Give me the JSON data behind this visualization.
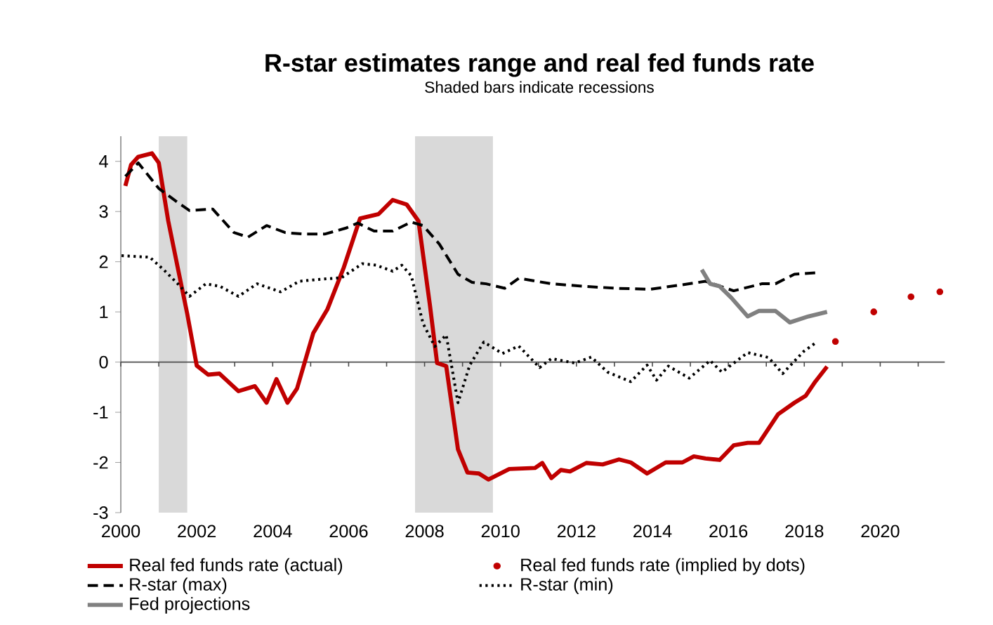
{
  "chart_data": {
    "type": "line",
    "title": "R-star estimates range and real fed funds rate",
    "subtitle": "Shaded bars indicate recessions",
    "xlim": [
      2000,
      2021.7
    ],
    "ylim": [
      -3,
      4.5
    ],
    "xticks": [
      2000,
      {
        "value": 2001,
        "label": null
      },
      2002,
      {
        "value": 2003,
        "label": null
      },
      2004,
      {
        "value": 2005,
        "label": null
      },
      2006,
      {
        "value": 2007,
        "label": null
      },
      2008,
      {
        "value": 2009,
        "label": null
      },
      2010,
      {
        "value": 2011,
        "label": null
      },
      2012,
      {
        "value": 2013,
        "label": null
      },
      2014,
      {
        "value": 2015,
        "label": null
      },
      2016,
      {
        "value": 2017,
        "label": null
      },
      2018,
      {
        "value": 2019,
        "label": null
      },
      2020,
      {
        "value": 2021,
        "label": null
      }
    ],
    "yticks": [
      -3,
      -2,
      -1,
      0,
      1,
      2,
      3,
      4
    ],
    "legend": "bottom",
    "bands": [
      {
        "axis": "x",
        "from": 2001.0,
        "to": 2001.75,
        "color": "#d9d9d9"
      },
      {
        "axis": "x",
        "from": 2007.75,
        "to": 2009.8,
        "color": "#d9d9d9"
      }
    ],
    "series": [
      {
        "name": "Real fed funds rate (actual)",
        "color": "#c00000",
        "line_style": "solid",
        "x": [
          2000.12,
          2000.27,
          2000.46,
          2000.82,
          2001.0,
          2001.25,
          2001.5,
          2001.75,
          2002.0,
          2002.3,
          2002.6,
          2003.1,
          2003.53,
          2003.84,
          2004.1,
          2004.39,
          2004.64,
          2005.07,
          2005.44,
          2005.87,
          2006.3,
          2006.79,
          2007.16,
          2007.53,
          2007.84,
          2008.14,
          2008.33,
          2008.57,
          2008.88,
          2009.13,
          2009.43,
          2009.68,
          2010.23,
          2010.91,
          2011.1,
          2011.34,
          2011.59,
          2011.83,
          2012.26,
          2012.69,
          2013.12,
          2013.43,
          2013.86,
          2014.35,
          2014.79,
          2015.09,
          2015.4,
          2015.77,
          2016.14,
          2016.51,
          2016.81,
          2017.31,
          2017.74,
          2018.04,
          2018.29,
          2018.6
        ],
        "values": [
          3.51,
          3.93,
          4.09,
          4.16,
          3.97,
          2.81,
          1.88,
          0.96,
          -0.07,
          -0.25,
          -0.23,
          -0.58,
          -0.48,
          -0.81,
          -0.34,
          -0.81,
          -0.53,
          0.58,
          1.05,
          1.88,
          2.86,
          2.95,
          3.23,
          3.14,
          2.81,
          1.14,
          -0.02,
          -0.08,
          -1.74,
          -2.2,
          -2.22,
          -2.34,
          -2.13,
          -2.11,
          -2.01,
          -2.31,
          -2.15,
          -2.18,
          -2.01,
          -2.04,
          -1.94,
          -2.0,
          -2.22,
          -2.0,
          -2.0,
          -1.88,
          -1.92,
          -1.95,
          -1.66,
          -1.61,
          -1.61,
          -1.04,
          -0.81,
          -0.67,
          -0.39,
          -0.09
        ]
      },
      {
        "name": "Real fed funds rate (implied by dots)",
        "type": "scatter",
        "marker": "circle",
        "color": "#c00000",
        "x": [
          2018.82,
          2019.83,
          2020.81,
          2021.57
        ],
        "values": [
          0.41,
          1.0,
          1.3,
          1.4
        ]
      },
      {
        "name": "R-star (max)",
        "color": "#000000",
        "line_style": "dashed",
        "x": [
          2000.12,
          2000.46,
          2001.0,
          2001.5,
          2001.81,
          2002.42,
          2002.98,
          2003.35,
          2003.84,
          2004.33,
          2004.82,
          2005.37,
          2005.93,
          2006.24,
          2006.67,
          2007.16,
          2007.65,
          2007.96,
          2008.39,
          2008.88,
          2009.25,
          2009.62,
          2010.11,
          2010.48,
          2011.34,
          2012.2,
          2013.06,
          2013.92,
          2014.79,
          2015.4,
          2016.14,
          2016.88,
          2017.24,
          2017.74,
          2018.29
        ],
        "values": [
          3.7,
          3.97,
          3.46,
          3.18,
          3.02,
          3.05,
          2.58,
          2.49,
          2.72,
          2.58,
          2.55,
          2.55,
          2.67,
          2.77,
          2.61,
          2.61,
          2.79,
          2.72,
          2.35,
          1.75,
          1.59,
          1.56,
          1.47,
          1.67,
          1.56,
          1.51,
          1.47,
          1.45,
          1.54,
          1.61,
          1.42,
          1.56,
          1.56,
          1.75,
          1.78
        ]
      },
      {
        "name": "R-star (min)",
        "color": "#000000",
        "line_style": "dotted",
        "x": [
          2000.02,
          2000.76,
          2001.13,
          2001.5,
          2001.81,
          2002.24,
          2002.61,
          2003.1,
          2003.59,
          2004.21,
          2004.7,
          2005.25,
          2005.81,
          2006.36,
          2006.73,
          2007.16,
          2007.4,
          2007.65,
          2007.96,
          2008.27,
          2008.57,
          2008.88,
          2009.19,
          2009.56,
          2010.05,
          2010.48,
          2011.03,
          2011.34,
          2011.96,
          2012.39,
          2012.82,
          2013.43,
          2013.86,
          2014.11,
          2014.42,
          2014.97,
          2015.52,
          2015.83,
          2016.51,
          2017.06,
          2017.43,
          2017.98,
          2018.33
        ],
        "values": [
          2.12,
          2.09,
          1.84,
          1.56,
          1.31,
          1.56,
          1.51,
          1.31,
          1.56,
          1.4,
          1.61,
          1.65,
          1.68,
          1.96,
          1.93,
          1.81,
          1.93,
          1.72,
          0.77,
          0.31,
          0.54,
          -0.81,
          -0.06,
          0.4,
          0.17,
          0.32,
          -0.11,
          0.07,
          -0.02,
          0.1,
          -0.2,
          -0.39,
          -0.06,
          -0.36,
          -0.08,
          -0.32,
          0.03,
          -0.2,
          0.19,
          0.09,
          -0.23,
          0.21,
          0.4
        ]
      },
      {
        "name": "Fed projections",
        "color": "#808080",
        "line_style": "solid",
        "x": [
          2015.3,
          2015.52,
          2015.77,
          2016.08,
          2016.51,
          2016.81,
          2017.24,
          2017.62,
          2018.11,
          2018.6
        ],
        "values": [
          1.84,
          1.56,
          1.51,
          1.28,
          0.91,
          1.02,
          1.02,
          0.79,
          0.91,
          1.0
        ]
      }
    ]
  }
}
